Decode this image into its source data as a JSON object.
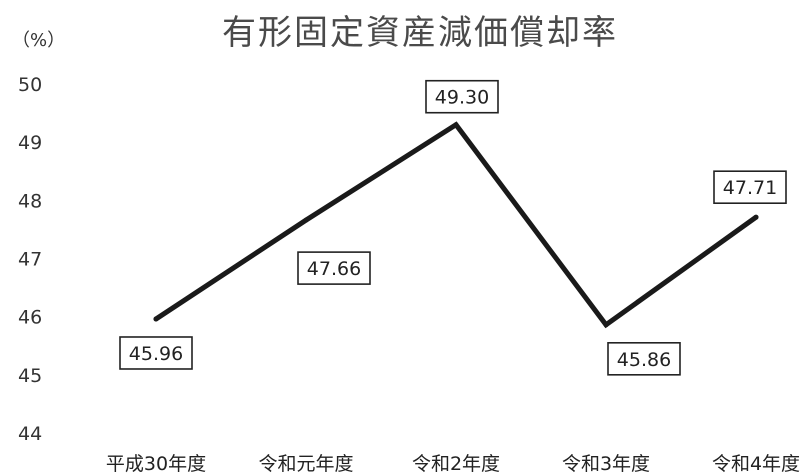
{
  "chart_data": {
    "type": "line",
    "title": "有形固定資産減価償却率",
    "unit_label": "（%）",
    "categories": [
      "平成30年度",
      "令和元年度",
      "令和2年度",
      "令和3年度",
      "令和4年度"
    ],
    "series": [
      {
        "values": [
          45.96,
          47.66,
          49.3,
          45.86,
          47.71
        ],
        "labels": [
          "45.96",
          "47.66",
          "49.30",
          "45.86",
          "47.71"
        ]
      }
    ],
    "ylim": [
      44,
      50
    ],
    "yticks": [
      "44",
      "45",
      "46",
      "47",
      "48",
      "49",
      "50"
    ],
    "grid": false,
    "legend": "none",
    "line_color": "#1a1a1a"
  }
}
